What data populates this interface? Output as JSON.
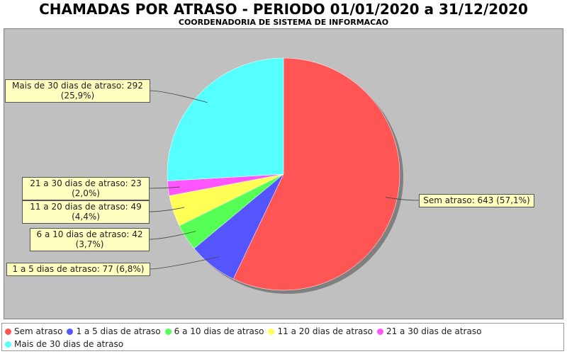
{
  "chart_data": {
    "type": "pie",
    "title": "CHAMADAS POR ATRASO - PERIODO 01/01/2020 a 31/12/2020",
    "subtitle": "COORDENADORIA DE SISTEMA DE INFORMACAO",
    "grid": false,
    "legend_position": "bottom",
    "background": "#c0c0c0",
    "slices": [
      {
        "name": "Sem atraso",
        "value": 643,
        "percent": "57,1%",
        "label_lines": [
          "Sem atraso: 643 (57,1%)"
        ],
        "color": "#ff5555"
      },
      {
        "name": "1 a 5 dias de atraso",
        "value": 77,
        "percent": "6,8%",
        "label_lines": [
          "1 a 5 dias de atraso: 77 (6,8%)"
        ],
        "color": "#5555ff"
      },
      {
        "name": "6 a 10 dias de atraso",
        "value": 42,
        "percent": "3,7%",
        "label_lines": [
          "6 a 10 dias de atraso: 42",
          "(3,7%)"
        ],
        "color": "#55ff55"
      },
      {
        "name": "11 a 20 dias de atraso",
        "value": 49,
        "percent": "4,4%",
        "label_lines": [
          "11 a 20 dias de atraso: 49",
          "(4,4%)"
        ],
        "color": "#ffff55"
      },
      {
        "name": "21 a 30 dias de atraso",
        "value": 23,
        "percent": "2,0%",
        "label_lines": [
          "21 a 30 dias de atraso: 23",
          "(2,0%)"
        ],
        "color": "#ff55ff"
      },
      {
        "name": "Mais de 30 dias de atraso",
        "value": 292,
        "percent": "25,9%",
        "label_lines": [
          "Mais de 30 dias de atraso: 292",
          "(25,9%)"
        ],
        "color": "#55ffff"
      }
    ]
  }
}
